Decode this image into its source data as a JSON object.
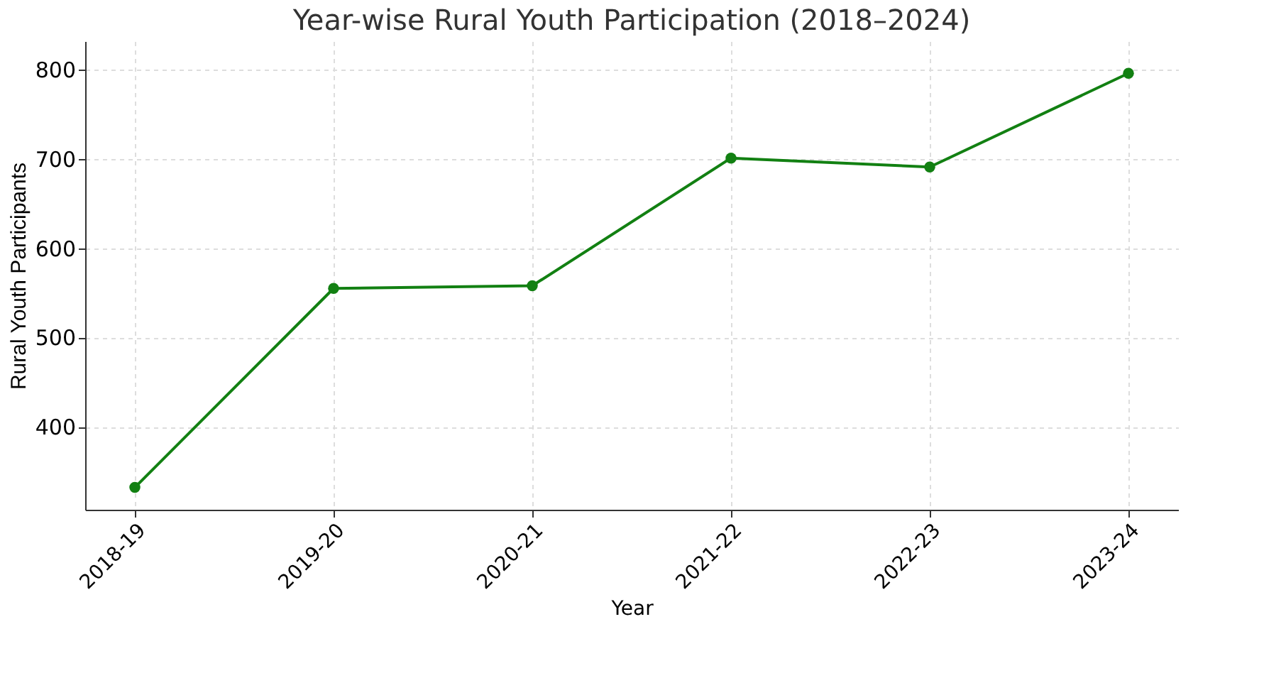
{
  "chart_data": {
    "type": "line",
    "title": "Year-wise Rural Youth Participation (2018–2024)",
    "xlabel": "Year",
    "ylabel": "Rural Youth Participants",
    "categories": [
      "2018-19",
      "2019-20",
      "2020-21",
      "2021-22",
      "2022-23",
      "2023-24"
    ],
    "series": [
      {
        "color": "#128012",
        "values": [
          332,
          555,
          558,
          701,
          691,
          796
        ]
      }
    ],
    "ylim": [
      307,
      832
    ],
    "yticks": [
      400,
      500,
      600,
      700,
      800
    ],
    "grid": true,
    "marker": "circle",
    "line_style": "solid"
  }
}
